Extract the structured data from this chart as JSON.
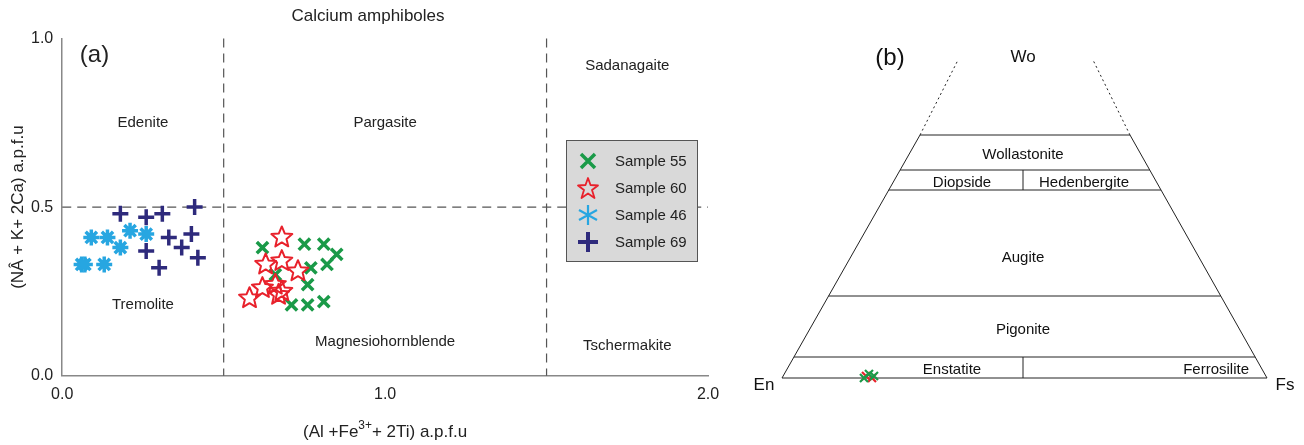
{
  "chart_data": [
    {
      "type": "scatter",
      "title": "Calcium amphiboles",
      "xlabel": "(Al +Fe$^{3+}$+ 2Ti) a.p.f.u",
      "ylabel": "(NÂ + K+ 2Ca) a.p.f.u",
      "xlim": [
        0,
        2
      ],
      "ylim": [
        0,
        1
      ],
      "xticks": [
        {
          "value": 0,
          "label": "0.0"
        },
        {
          "value": 1,
          "label": "1.0"
        },
        {
          "value": 2,
          "label": "2.0"
        }
      ],
      "yticks": [
        {
          "value": 0,
          "label": "0.0"
        },
        {
          "value": 0.5,
          "label": "0.5"
        },
        {
          "value": 1,
          "label": "1.0"
        }
      ],
      "grid": false,
      "legend": "right",
      "series": [
        {
          "name": "Sample 55",
          "color": "#1a9a48",
          "marker": "cross",
          "x": [
            0.62,
            0.75,
            0.81,
            0.85,
            0.77,
            0.82,
            0.66,
            0.76,
            0.71,
            0.76,
            0.81
          ],
          "values": [
            0.38,
            0.39,
            0.39,
            0.36,
            0.32,
            0.33,
            0.3,
            0.27,
            0.21,
            0.21,
            0.22
          ]
        },
        {
          "name": "Sample 60",
          "color": "#e8212b",
          "marker": "star",
          "x": [
            0.68,
            0.63,
            0.68,
            0.73,
            0.62,
            0.66,
            0.68,
            0.58,
            0.67
          ],
          "values": [
            0.41,
            0.33,
            0.34,
            0.31,
            0.26,
            0.27,
            0.25,
            0.23,
            0.24
          ]
        },
        {
          "name": "Sample 46",
          "color": "#27a6e1",
          "marker": "cross",
          "x": [
            0.09,
            0.14,
            0.18,
            0.21,
            0.26,
            0.06,
            0.07,
            0.13
          ],
          "values": [
            0.41,
            0.41,
            0.38,
            0.43,
            0.42,
            0.33,
            0.33,
            0.33
          ]
        },
        {
          "name": "Sample 69",
          "color": "#2e2a7c",
          "marker": "cross",
          "x": [
            0.18,
            0.26,
            0.31,
            0.41,
            0.26,
            0.3,
            0.33,
            0.37,
            0.4,
            0.42
          ],
          "values": [
            0.48,
            0.47,
            0.48,
            0.5,
            0.37,
            0.32,
            0.41,
            0.38,
            0.42,
            0.35
          ]
        }
      ],
      "ref_lines": [
        {
          "axis": "x",
          "value": 0.5,
          "line_style": "dashed"
        },
        {
          "axis": "x",
          "value": 1.5,
          "line_style": "dashed"
        },
        {
          "axis": "y",
          "value": 0.5,
          "line_style": "dashed"
        }
      ],
      "annotations": [
        "(a)",
        "Edenite",
        "Pargasite",
        "Sadanagaite",
        "Tremolite",
        "Magnesiohornblende",
        "Tschermakite"
      ]
    },
    {
      "type": "other",
      "title": "(b)",
      "annotations": [
        "Wo",
        "Wollastonite",
        "Diopside",
        "Hedenbergite",
        "Augite",
        "Pigonite",
        "Enstatite",
        "Ferrosilite",
        "En",
        "Fs"
      ]
    }
  ]
}
